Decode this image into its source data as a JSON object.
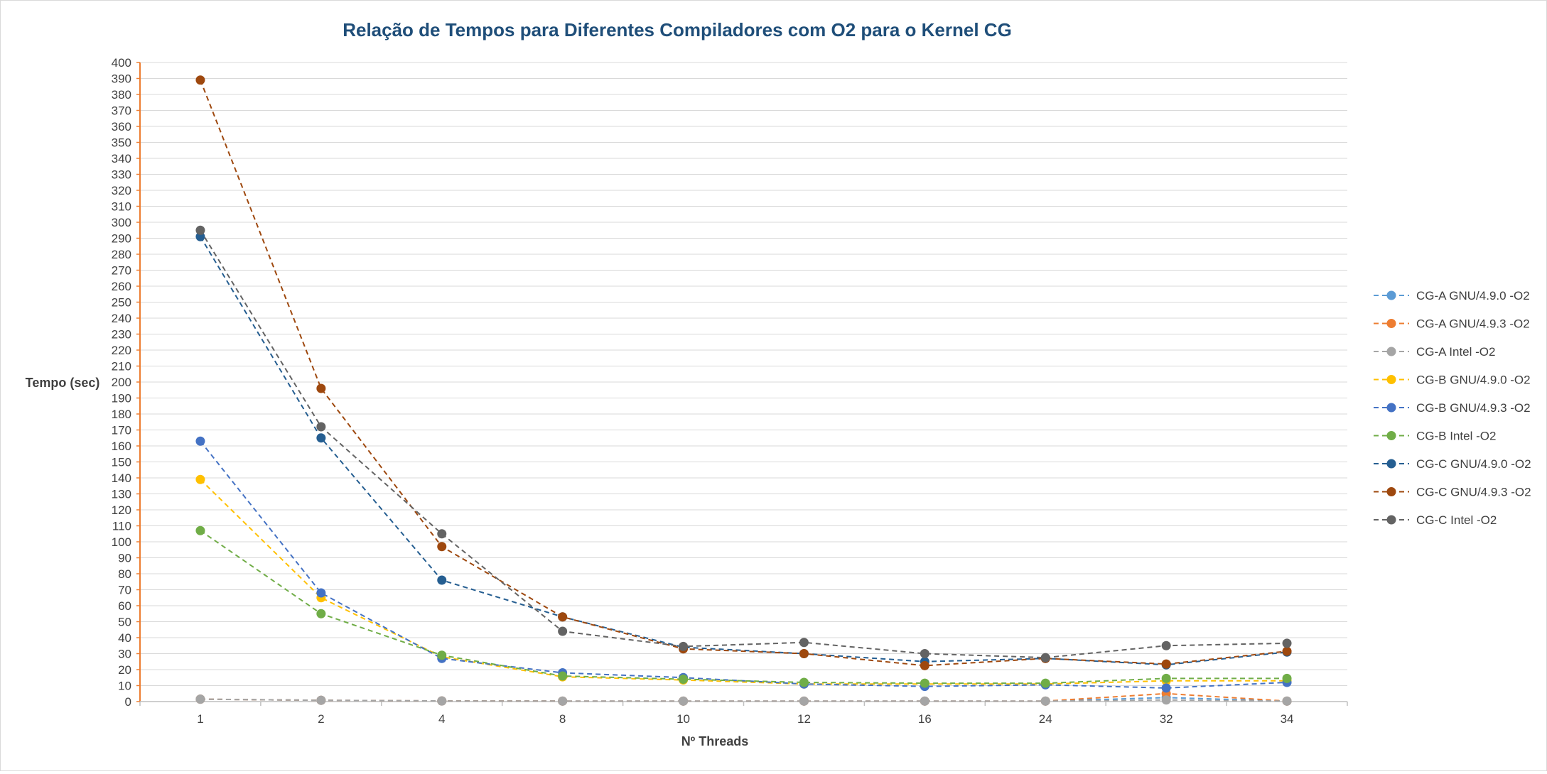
{
  "chart_data": {
    "type": "line",
    "title": "Relação de Tempos para Diferentes Compiladores com O2 para o Kernel CG",
    "xlabel": "Nº Threads",
    "ylabel": "Tempo (sec)",
    "categories": [
      "1",
      "2",
      "4",
      "8",
      "10",
      "12",
      "16",
      "24",
      "32",
      "34"
    ],
    "ylim": [
      0,
      400
    ],
    "ytick_step": 10,
    "grid": true,
    "legend_position": "right",
    "line_style": "dashed",
    "series": [
      {
        "name": "CG-A GNU/4.9.0 -O2",
        "color": "#5b9bd5",
        "values": [
          1.5,
          0.8,
          0.4,
          0.3,
          0.3,
          0.3,
          0.3,
          0.3,
          2.5,
          0.3
        ]
      },
      {
        "name": "CG-A GNU/4.9.3 -O2",
        "color": "#ed7d31",
        "values": [
          1.5,
          0.8,
          0.4,
          0.3,
          0.3,
          0.3,
          0.3,
          0.3,
          5.0,
          0.3
        ]
      },
      {
        "name": "CG-A Intel -O2",
        "color": "#a5a5a5",
        "values": [
          1.5,
          0.8,
          0.4,
          0.3,
          0.3,
          0.3,
          0.3,
          0.3,
          1.0,
          0.3
        ]
      },
      {
        "name": "CG-B GNU/4.9.0 -O2",
        "color": "#ffc000",
        "values": [
          139,
          65,
          28,
          15.5,
          13.5,
          11,
          11,
          11,
          13,
          13
        ]
      },
      {
        "name": "CG-B GNU/4.9.3 -O2",
        "color": "#4472c4",
        "values": [
          163,
          68,
          27,
          18,
          15,
          11,
          9.5,
          10.5,
          8.5,
          12
        ]
      },
      {
        "name": "CG-B Intel -O2",
        "color": "#70ad47",
        "values": [
          107,
          55,
          29,
          16,
          14,
          12,
          11.5,
          11.5,
          14.5,
          14.5
        ]
      },
      {
        "name": "CG-C GNU/4.9.0 -O2",
        "color": "#255e91",
        "values": [
          291,
          165,
          76,
          53,
          34,
          30,
          25,
          27,
          23,
          31
        ]
      },
      {
        "name": "CG-C GNU/4.9.3 -O2",
        "color": "#9e480e",
        "values": [
          389,
          196,
          97,
          53,
          33,
          30,
          22.5,
          27,
          23.5,
          31.5
        ]
      },
      {
        "name": "CG-C Intel -O2",
        "color": "#636363",
        "values": [
          295,
          172,
          105,
          44,
          34.5,
          37,
          30,
          27.5,
          35,
          36.5
        ]
      }
    ]
  }
}
